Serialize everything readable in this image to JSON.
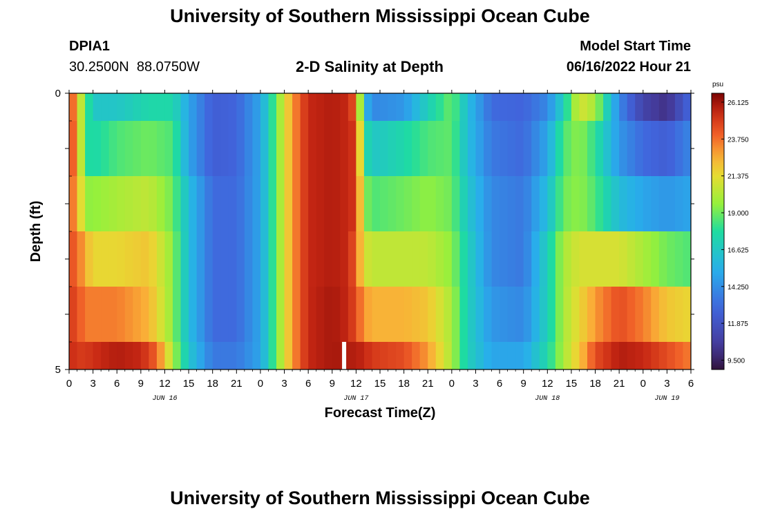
{
  "header": {
    "title": "University of Southern Mississippi Ocean Cube",
    "station_id": "DPIA1",
    "station_coords": "30.2500N  88.0750W",
    "plot_title": "2-D Salinity at Depth",
    "model_start_label": "Model Start Time",
    "model_start_value": "06/16/2022 Hour 21"
  },
  "footer": {
    "title": "University of Southern Mississippi Ocean Cube"
  },
  "chart_data": {
    "type": "heatmap",
    "title": "2-D Salinity at Depth",
    "xlabel": "Forecast Time(Z)",
    "ylabel": "Depth (ft)",
    "x_hours_range": [
      0,
      78
    ],
    "ylim": [
      0,
      5
    ],
    "y_ticks": [
      "0",
      "5"
    ],
    "x_tick_labels": [
      "0",
      "3",
      "6",
      "9",
      "12",
      "15",
      "18",
      "21",
      "0",
      "3",
      "6",
      "9",
      "12",
      "15",
      "18",
      "21",
      "0",
      "3",
      "6",
      "9",
      "12",
      "15",
      "18",
      "21",
      "0",
      "3",
      "6"
    ],
    "day_labels": [
      {
        "text": "JUN 16",
        "hour": 12
      },
      {
        "text": "JUN 17",
        "hour": 36
      },
      {
        "text": "JUN 18",
        "hour": 60
      },
      {
        "text": "JUN 19",
        "hour": 75
      }
    ],
    "gap_hour": 34.5,
    "colorbar": {
      "unit": "psu",
      "range": [
        8.9,
        26.7
      ],
      "tick_values": [
        "26.125",
        "23.750",
        "21.375",
        "19.000",
        "16.625",
        "14.250",
        "11.875",
        "9.500"
      ]
    },
    "depth_layers": [
      "0-0.5 ft",
      "0.5-1.5 ft",
      "1.5-2.5 ft",
      "2.5-3.5 ft",
      "3.5-4.5 ft",
      "4.5-5 ft"
    ],
    "series": [
      {
        "values": [
          [
            0,
            25.5
          ],
          [
            1,
            22
          ],
          [
            2,
            19
          ],
          [
            3,
            16.5
          ],
          [
            6,
            16.5
          ],
          [
            10,
            17.5
          ],
          [
            13,
            17.5
          ],
          [
            15,
            15
          ],
          [
            18,
            12.5
          ],
          [
            21,
            12.8
          ],
          [
            24,
            15
          ],
          [
            26,
            19
          ],
          [
            28,
            23
          ],
          [
            30,
            25.5
          ],
          [
            33,
            25.8
          ],
          [
            35,
            25.5
          ],
          [
            36,
            24
          ],
          [
            37,
            16
          ],
          [
            38,
            14
          ],
          [
            42,
            14.5
          ],
          [
            45,
            17
          ],
          [
            48,
            19
          ],
          [
            50,
            16
          ],
          [
            53,
            13
          ],
          [
            57,
            12.8
          ],
          [
            60,
            14
          ],
          [
            62,
            17
          ],
          [
            64,
            21
          ],
          [
            66,
            20
          ],
          [
            69,
            14
          ],
          [
            72,
            11
          ],
          [
            75,
            10
          ],
          [
            78,
            13
          ]
        ]
      },
      {
        "values": [
          [
            0,
            25
          ],
          [
            1,
            23
          ],
          [
            2,
            18
          ],
          [
            3,
            17.5
          ],
          [
            6,
            18.5
          ],
          [
            10,
            19
          ],
          [
            13,
            18.5
          ],
          [
            15,
            15
          ],
          [
            18,
            12.5
          ],
          [
            21,
            12.8
          ],
          [
            24,
            15
          ],
          [
            26,
            19
          ],
          [
            28,
            23
          ],
          [
            30,
            25.5
          ],
          [
            33,
            25.8
          ],
          [
            35,
            25.5
          ],
          [
            36,
            25
          ],
          [
            37,
            18
          ],
          [
            38,
            16.5
          ],
          [
            42,
            17.5
          ],
          [
            45,
            18.5
          ],
          [
            48,
            18.8
          ],
          [
            50,
            16
          ],
          [
            53,
            13.5
          ],
          [
            57,
            13
          ],
          [
            60,
            15
          ],
          [
            62,
            18.5
          ],
          [
            64,
            19.5
          ],
          [
            66,
            18
          ],
          [
            69,
            14.5
          ],
          [
            72,
            13
          ],
          [
            75,
            12.5
          ],
          [
            78,
            14
          ]
        ]
      },
      {
        "values": [
          [
            0,
            24
          ],
          [
            1,
            23
          ],
          [
            2,
            19.5
          ],
          [
            3,
            19.5
          ],
          [
            6,
            20
          ],
          [
            10,
            20.5
          ],
          [
            13,
            19
          ],
          [
            15,
            16
          ],
          [
            18,
            13
          ],
          [
            21,
            13
          ],
          [
            24,
            15
          ],
          [
            26,
            19
          ],
          [
            28,
            23
          ],
          [
            30,
            25.5
          ],
          [
            33,
            25.8
          ],
          [
            35,
            25.5
          ],
          [
            36,
            25
          ],
          [
            37,
            19.5
          ],
          [
            38,
            18.5
          ],
          [
            42,
            19
          ],
          [
            45,
            19.5
          ],
          [
            48,
            19
          ],
          [
            50,
            16.5
          ],
          [
            53,
            14
          ],
          [
            57,
            13.5
          ],
          [
            60,
            16
          ],
          [
            62,
            19
          ],
          [
            64,
            19.5
          ],
          [
            66,
            18.5
          ],
          [
            69,
            16
          ],
          [
            72,
            15
          ],
          [
            75,
            14.5
          ],
          [
            78,
            15
          ]
        ]
      },
      {
        "values": [
          [
            0,
            24.5
          ],
          [
            1,
            24
          ],
          [
            2,
            22.5
          ],
          [
            3,
            21.5
          ],
          [
            6,
            21.5
          ],
          [
            10,
            22
          ],
          [
            13,
            19.5
          ],
          [
            15,
            16
          ],
          [
            18,
            13
          ],
          [
            21,
            13
          ],
          [
            24,
            15
          ],
          [
            26,
            19
          ],
          [
            28,
            23
          ],
          [
            30,
            25.5
          ],
          [
            33,
            25.8
          ],
          [
            35,
            25.5
          ],
          [
            36,
            24
          ],
          [
            37,
            21
          ],
          [
            38,
            20.5
          ],
          [
            42,
            20.5
          ],
          [
            45,
            20.5
          ],
          [
            48,
            19.5
          ],
          [
            50,
            17
          ],
          [
            53,
            14
          ],
          [
            57,
            13.5
          ],
          [
            60,
            17
          ],
          [
            62,
            20
          ],
          [
            64,
            21
          ],
          [
            66,
            21
          ],
          [
            69,
            21
          ],
          [
            72,
            20
          ],
          [
            75,
            19
          ],
          [
            78,
            18.5
          ]
        ]
      },
      {
        "values": [
          [
            0,
            25
          ],
          [
            1,
            24.5
          ],
          [
            2,
            23.5
          ],
          [
            3,
            23.5
          ],
          [
            6,
            23.5
          ],
          [
            10,
            22.5
          ],
          [
            13,
            19.5
          ],
          [
            15,
            16
          ],
          [
            18,
            13
          ],
          [
            21,
            13
          ],
          [
            24,
            15
          ],
          [
            26,
            19
          ],
          [
            28,
            23
          ],
          [
            30,
            25.5
          ],
          [
            33,
            26
          ],
          [
            35,
            25.5
          ],
          [
            36,
            24.5
          ],
          [
            37,
            23
          ],
          [
            38,
            22.5
          ],
          [
            42,
            22.5
          ],
          [
            45,
            22
          ],
          [
            48,
            20
          ],
          [
            50,
            17
          ],
          [
            53,
            14.5
          ],
          [
            57,
            14
          ],
          [
            60,
            17
          ],
          [
            62,
            20
          ],
          [
            64,
            21.5
          ],
          [
            66,
            23
          ],
          [
            69,
            24.5
          ],
          [
            72,
            23.5
          ],
          [
            75,
            22
          ],
          [
            78,
            21.5
          ]
        ]
      },
      {
        "values": [
          [
            0,
            25.5
          ],
          [
            1,
            25
          ],
          [
            2,
            25
          ],
          [
            4,
            25.5
          ],
          [
            6,
            25.8
          ],
          [
            9,
            25.5
          ],
          [
            11,
            24
          ],
          [
            13,
            20
          ],
          [
            15,
            16.5
          ],
          [
            18,
            13.5
          ],
          [
            21,
            13.5
          ],
          [
            24,
            15
          ],
          [
            26,
            19
          ],
          [
            28,
            23
          ],
          [
            30,
            25.5
          ],
          [
            33,
            26
          ],
          [
            35,
            25.8
          ],
          [
            36,
            25.8
          ],
          [
            37,
            25.5
          ],
          [
            38,
            25
          ],
          [
            42,
            24.5
          ],
          [
            45,
            23
          ],
          [
            48,
            20
          ],
          [
            50,
            17
          ],
          [
            53,
            15
          ],
          [
            57,
            15
          ],
          [
            60,
            17.5
          ],
          [
            62,
            20
          ],
          [
            64,
            22
          ],
          [
            66,
            24.5
          ],
          [
            69,
            25.8
          ],
          [
            72,
            25.5
          ],
          [
            75,
            24.5
          ],
          [
            78,
            23.5
          ]
        ]
      }
    ]
  }
}
